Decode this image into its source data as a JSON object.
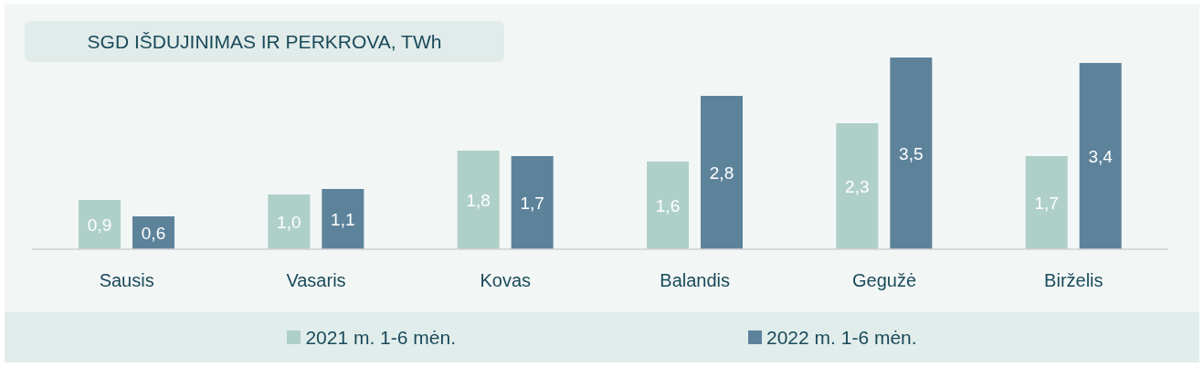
{
  "chart_data": {
    "type": "bar",
    "title": "SGD IŠDUJINIMAS IR PERKROVA, TWh",
    "categories": [
      "Sausis",
      "Vasaris",
      "Kovas",
      "Balandis",
      "Gegužė",
      "Birželis"
    ],
    "series": [
      {
        "name": "2021 m. 1-6 mėn.",
        "color": "#afd0c9",
        "values": [
          0.9,
          1.0,
          1.8,
          1.6,
          2.3,
          1.7
        ],
        "value_labels": [
          "0,9",
          "1,0",
          "1,8",
          "1,6",
          "2,3",
          "1,7"
        ]
      },
      {
        "name": "2022 m. 1-6 mėn.",
        "color": "#5d839b",
        "values": [
          0.6,
          1.1,
          1.7,
          2.8,
          3.5,
          3.4
        ],
        "value_labels": [
          "0,6",
          "1,1",
          "1,7",
          "2,8",
          "3,5",
          "3,4"
        ]
      }
    ],
    "legend": "bottom"
  }
}
